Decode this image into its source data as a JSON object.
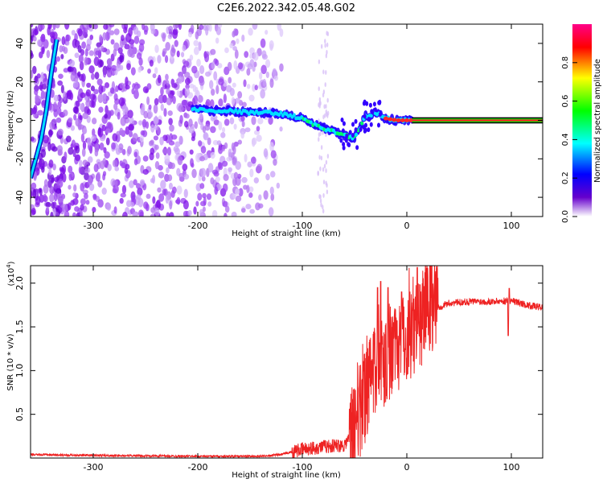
{
  "figure": {
    "title": "C2E6.2022.342.05.48.G02"
  },
  "chart_data": [
    {
      "type": "heatmap",
      "xlabel": "Height of straight line (km)",
      "ylabel": "Frequency (Hz)",
      "xlim": [
        -360,
        130
      ],
      "ylim": [
        -50,
        50
      ],
      "x_ticks": [
        -300,
        -200,
        -100,
        0,
        100
      ],
      "y_ticks": [
        -40,
        -20,
        0,
        20,
        40
      ],
      "colorbar": {
        "label": "Normalized spectral amplitude",
        "range": [
          0,
          1
        ],
        "ticks": [
          "0.0",
          "0.2",
          "0.4",
          "0.6",
          "0.8"
        ],
        "colors": [
          "#ffffff",
          "#6600cc",
          "#0000ff",
          "#00ffff",
          "#00ff00",
          "#ffff00",
          "#ff0000",
          "#ff00aa"
        ]
      },
      "ridge": [
        {
          "x": -205,
          "y": 6
        },
        {
          "x": -190,
          "y": 5
        },
        {
          "x": -170,
          "y": 5
        },
        {
          "x": -150,
          "y": 4
        },
        {
          "x": -130,
          "y": 4
        },
        {
          "x": -115,
          "y": 3
        },
        {
          "x": -100,
          "y": 1
        },
        {
          "x": -90,
          "y": -2
        },
        {
          "x": -80,
          "y": -4
        },
        {
          "x": -70,
          "y": -6
        },
        {
          "x": -60,
          "y": -8
        },
        {
          "x": -50,
          "y": -9
        },
        {
          "x": -45,
          "y": -4
        },
        {
          "x": -40,
          "y": 2
        },
        {
          "x": -30,
          "y": 4
        },
        {
          "x": -20,
          "y": 1
        },
        {
          "x": -10,
          "y": 0
        },
        {
          "x": 0,
          "y": 0
        },
        {
          "x": 130,
          "y": 0
        }
      ],
      "steep_line": [
        {
          "x": -360,
          "y": -30
        },
        {
          "x": -350,
          "y": -10
        },
        {
          "x": -345,
          "y": 5
        },
        {
          "x": -340,
          "y": 25
        },
        {
          "x": -335,
          "y": 42
        }
      ]
    },
    {
      "type": "line",
      "xlabel": "Height of straight line (km)",
      "ylabel": "SNR (10 * v/v)",
      "scale_label": "(x10",
      "scale_exponent": "4",
      "scale_close": ")",
      "xlim": [
        -360,
        130
      ],
      "ylim": [
        0,
        2.2
      ],
      "x_ticks": [
        -300,
        -200,
        -100,
        0,
        100
      ],
      "y_ticks": [
        "0.5",
        "1.0",
        "1.5",
        "2.0"
      ],
      "color": "#ee2222",
      "profile": [
        {
          "x": -360,
          "y": 0.04
        },
        {
          "x": -300,
          "y": 0.03
        },
        {
          "x": -200,
          "y": 0.02
        },
        {
          "x": -140,
          "y": 0.02
        },
        {
          "x": -120,
          "y": 0.04
        },
        {
          "x": -100,
          "y": 0.1
        },
        {
          "x": -80,
          "y": 0.13
        },
        {
          "x": -60,
          "y": 0.15
        },
        {
          "x": -50,
          "y": 0.3
        },
        {
          "x": -40,
          "y": 0.7
        },
        {
          "x": -30,
          "y": 1.0
        },
        {
          "x": -20,
          "y": 1.15
        },
        {
          "x": -10,
          "y": 1.25
        },
        {
          "x": 0,
          "y": 1.4
        },
        {
          "x": 10,
          "y": 1.55
        },
        {
          "x": 20,
          "y": 1.68
        },
        {
          "x": 40,
          "y": 1.77
        },
        {
          "x": 60,
          "y": 1.79
        },
        {
          "x": 80,
          "y": 1.79
        },
        {
          "x": 100,
          "y": 1.8
        },
        {
          "x": 115,
          "y": 1.75
        },
        {
          "x": 130,
          "y": 1.72
        }
      ],
      "spikes": [
        {
          "x": -28,
          "y": 1.95
        },
        {
          "x": -25,
          "y": 2.02
        },
        {
          "x": -18,
          "y": 1.95
        },
        {
          "x": -5,
          "y": 1.9
        },
        {
          "x": 10,
          "y": 2.18
        },
        {
          "x": 98,
          "y": 1.94
        },
        {
          "x": 97,
          "y": 1.4
        }
      ]
    }
  ]
}
